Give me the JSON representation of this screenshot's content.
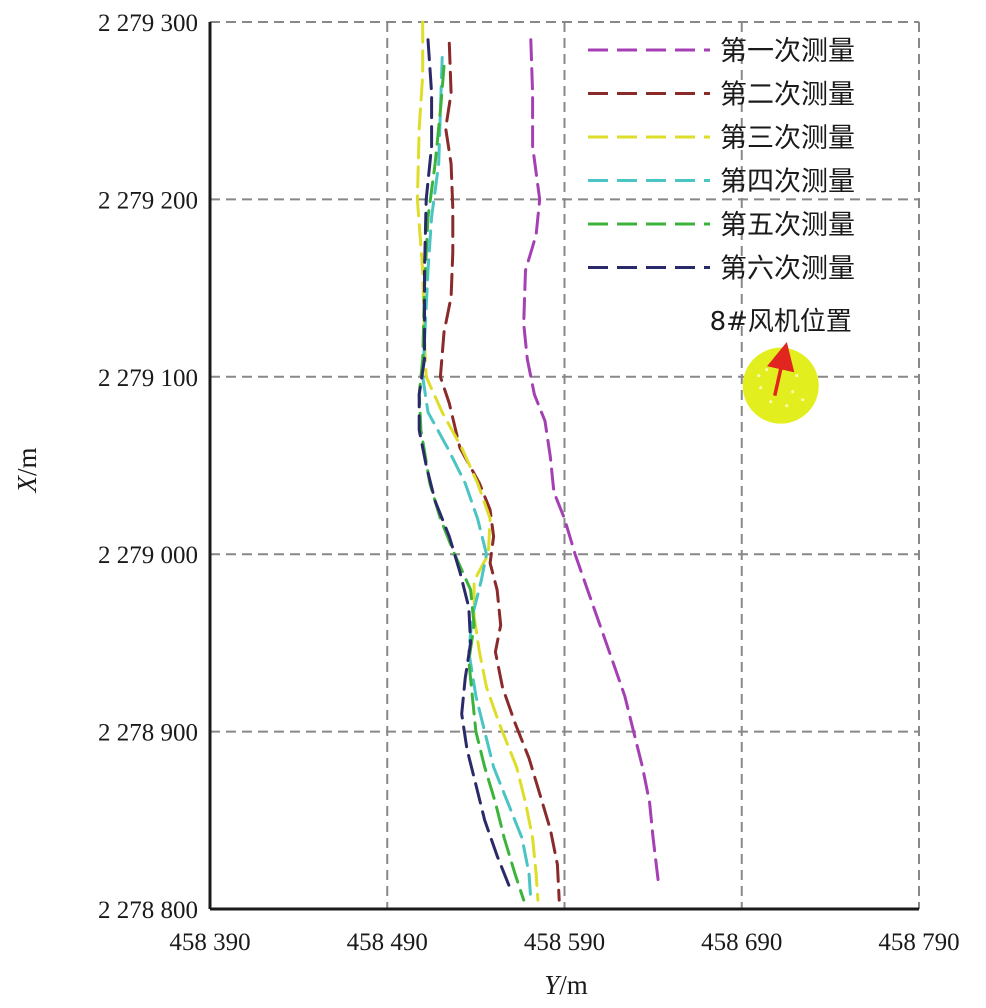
{
  "chart_data": {
    "type": "line",
    "xlabel_var": "Y",
    "xlabel_unit": "/m",
    "ylabel_var": "X",
    "ylabel_unit": "/m",
    "xlim": [
      458390,
      458790
    ],
    "ylim": [
      2278800,
      2279300
    ],
    "x_ticks": [
      458390,
      458490,
      458590,
      458690,
      458790
    ],
    "x_tick_labels": [
      "458 390",
      "458 490",
      "458 590",
      "458 690",
      "458 790"
    ],
    "y_ticks": [
      2278800,
      2278900,
      2279000,
      2279100,
      2279200,
      2279300
    ],
    "y_tick_labels": [
      "2 278 800",
      "2 278 900",
      "2 279 000",
      "2 279 100",
      "2 279 200",
      "2 279 300"
    ],
    "grid": true,
    "legend_position": "top-right",
    "series": [
      {
        "name": "第一次测量",
        "color": "#a43fb4",
        "points": [
          [
            458571,
            2279290
          ],
          [
            458572,
            2279260
          ],
          [
            458572,
            2279230
          ],
          [
            458576,
            2279200
          ],
          [
            458574,
            2279180
          ],
          [
            458568,
            2279160
          ],
          [
            458567,
            2279130
          ],
          [
            458569,
            2279110
          ],
          [
            458573,
            2279090
          ],
          [
            458579,
            2279075
          ],
          [
            458582,
            2279055
          ],
          [
            458584,
            2279035
          ],
          [
            458590,
            2279020
          ],
          [
            458596,
            2279000
          ],
          [
            458603,
            2278980
          ],
          [
            458610,
            2278960
          ],
          [
            458617,
            2278940
          ],
          [
            458624,
            2278920
          ],
          [
            458629,
            2278900
          ],
          [
            458634,
            2278880
          ],
          [
            458638,
            2278860
          ],
          [
            458640,
            2278840
          ],
          [
            458643,
            2278815
          ]
        ]
      },
      {
        "name": "第二次测量",
        "color": "#8a2a2a",
        "points": [
          [
            458525,
            2279288
          ],
          [
            458526,
            2279260
          ],
          [
            458523,
            2279240
          ],
          [
            458526,
            2279220
          ],
          [
            458527,
            2279195
          ],
          [
            458527,
            2279170
          ],
          [
            458526,
            2279145
          ],
          [
            458522,
            2279125
          ],
          [
            458520,
            2279100
          ],
          [
            458525,
            2279085
          ],
          [
            458531,
            2279060
          ],
          [
            458542,
            2279040
          ],
          [
            458548,
            2279025
          ],
          [
            458550,
            2279010
          ],
          [
            458548,
            2278995
          ],
          [
            458552,
            2278980
          ],
          [
            458554,
            2278960
          ],
          [
            458551,
            2278945
          ],
          [
            458555,
            2278925
          ],
          [
            458562,
            2278905
          ],
          [
            458570,
            2278885
          ],
          [
            458576,
            2278865
          ],
          [
            458582,
            2278845
          ],
          [
            458586,
            2278825
          ],
          [
            458587,
            2278805
          ]
        ]
      },
      {
        "name": "第三次测量",
        "color": "#dede2a",
        "points": [
          [
            458510,
            2279300
          ],
          [
            458510,
            2279270
          ],
          [
            458508,
            2279240
          ],
          [
            458507,
            2279200
          ],
          [
            458510,
            2279160
          ],
          [
            458511,
            2279120
          ],
          [
            458512,
            2279100
          ],
          [
            458521,
            2279080
          ],
          [
            458532,
            2279060
          ],
          [
            458541,
            2279040
          ],
          [
            458548,
            2279020
          ],
          [
            458547,
            2279000
          ],
          [
            458539,
            2278985
          ],
          [
            458539,
            2278965
          ],
          [
            458542,
            2278945
          ],
          [
            458546,
            2278925
          ],
          [
            458553,
            2278905
          ],
          [
            458563,
            2278880
          ],
          [
            458568,
            2278860
          ],
          [
            458572,
            2278840
          ],
          [
            458574,
            2278820
          ],
          [
            458575,
            2278805
          ]
        ]
      },
      {
        "name": "第四次测量",
        "color": "#4ac4c4",
        "points": [
          [
            458521,
            2279280
          ],
          [
            458520,
            2279250
          ],
          [
            458519,
            2279220
          ],
          [
            458515,
            2279190
          ],
          [
            458513,
            2279160
          ],
          [
            458511,
            2279120
          ],
          [
            458510,
            2279100
          ],
          [
            458513,
            2279080
          ],
          [
            458524,
            2279060
          ],
          [
            458534,
            2279040
          ],
          [
            458541,
            2279020
          ],
          [
            458546,
            2279000
          ],
          [
            458543,
            2278985
          ],
          [
            458538,
            2278965
          ],
          [
            458536,
            2278945
          ],
          [
            458540,
            2278920
          ],
          [
            458545,
            2278900
          ],
          [
            458550,
            2278880
          ],
          [
            458558,
            2278860
          ],
          [
            458566,
            2278840
          ],
          [
            458570,
            2278820
          ],
          [
            458571,
            2278805
          ]
        ]
      },
      {
        "name": "第五次测量",
        "color": "#3cb43c",
        "points": [
          [
            458522,
            2279275
          ],
          [
            458520,
            2279250
          ],
          [
            458517,
            2279220
          ],
          [
            458513,
            2279190
          ],
          [
            458511,
            2279150
          ],
          [
            458510,
            2279110
          ],
          [
            458508,
            2279090
          ],
          [
            458509,
            2279070
          ],
          [
            458514,
            2279040
          ],
          [
            458520,
            2279020
          ],
          [
            458528,
            2279000
          ],
          [
            458537,
            2278980
          ],
          [
            458539,
            2278960
          ],
          [
            458536,
            2278940
          ],
          [
            458538,
            2278920
          ],
          [
            458540,
            2278900
          ],
          [
            458545,
            2278880
          ],
          [
            458551,
            2278860
          ],
          [
            458556,
            2278840
          ],
          [
            458562,
            2278820
          ],
          [
            458567,
            2278805
          ]
        ]
      },
      {
        "name": "第六次测量",
        "color": "#2a2a6a",
        "points": [
          [
            458513,
            2279290
          ],
          [
            458515,
            2279260
          ],
          [
            458515,
            2279230
          ],
          [
            458512,
            2279200
          ],
          [
            458511,
            2279160
          ],
          [
            458511,
            2279110
          ],
          [
            458508,
            2279090
          ],
          [
            458508,
            2279070
          ],
          [
            458512,
            2279050
          ],
          [
            458517,
            2279030
          ],
          [
            458525,
            2279010
          ],
          [
            458531,
            2278990
          ],
          [
            458536,
            2278970
          ],
          [
            458537,
            2278950
          ],
          [
            458534,
            2278930
          ],
          [
            458532,
            2278910
          ],
          [
            458535,
            2278890
          ],
          [
            458540,
            2278870
          ],
          [
            458545,
            2278850
          ],
          [
            458552,
            2278830
          ],
          [
            458560,
            2278810
          ]
        ]
      }
    ],
    "annotation": {
      "label": "8#风机位置",
      "marker_center": [
        458712,
        2279095
      ],
      "marker_radius": 22,
      "marker_color": "#e3ee1e",
      "arrow_color": "#e0261e"
    }
  }
}
